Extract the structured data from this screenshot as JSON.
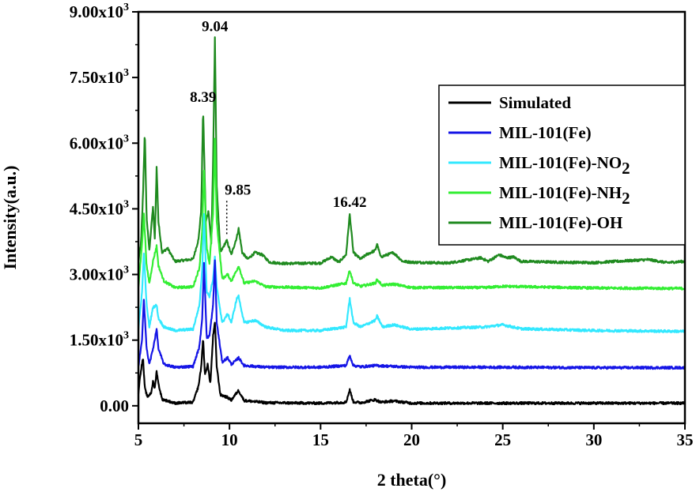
{
  "chart_data": {
    "type": "line",
    "title": "",
    "xlabel": "2 theta(°)",
    "ylabel": "Intensity(a.u.)",
    "xlim": [
      5,
      35
    ],
    "ylim": [
      -400,
      9000
    ],
    "x_ticks": [
      {
        "value": 5,
        "label": "5"
      },
      {
        "value": 10,
        "label": "10"
      },
      {
        "value": 15,
        "label": "15"
      },
      {
        "value": 20,
        "label": "20"
      },
      {
        "value": 25,
        "label": "25"
      },
      {
        "value": 30,
        "label": "30"
      },
      {
        "value": 35,
        "label": "35"
      }
    ],
    "y_ticks": [
      {
        "value": 0,
        "mant": "0.00",
        "exp": ""
      },
      {
        "value": 1500,
        "mant": "1.50x10",
        "exp": "3"
      },
      {
        "value": 3000,
        "mant": "3.00x10",
        "exp": "3"
      },
      {
        "value": 4500,
        "mant": "4.50x10",
        "exp": "3"
      },
      {
        "value": 6000,
        "mant": "6.00x10",
        "exp": "3"
      },
      {
        "value": 7500,
        "mant": "7.50x10",
        "exp": "3"
      },
      {
        "value": 9000,
        "mant": "9.00x10",
        "exp": "3"
      }
    ],
    "grid": false,
    "legend_position": "top-right",
    "series": [
      {
        "name": "MIL-101(Fe)-OH",
        "label": "MIL-101(Fe)-OH",
        "sub": "",
        "color": "#1f8a1f",
        "baseline": 3250,
        "points": [
          [
            5.0,
            3300
          ],
          [
            5.15,
            3750
          ],
          [
            5.25,
            4800
          ],
          [
            5.35,
            6250
          ],
          [
            5.45,
            4300
          ],
          [
            5.6,
            3550
          ],
          [
            5.8,
            4550
          ],
          [
            5.9,
            3800
          ],
          [
            6.0,
            5450
          ],
          [
            6.1,
            4200
          ],
          [
            6.3,
            3500
          ],
          [
            6.6,
            3600
          ],
          [
            7.0,
            3300
          ],
          [
            8.0,
            3350
          ],
          [
            8.3,
            3800
          ],
          [
            8.45,
            4500
          ],
          [
            8.55,
            6780
          ],
          [
            8.7,
            4200
          ],
          [
            8.85,
            4450
          ],
          [
            9.0,
            3700
          ],
          [
            9.1,
            5600
          ],
          [
            9.2,
            8400
          ],
          [
            9.3,
            5000
          ],
          [
            9.5,
            3500
          ],
          [
            9.85,
            3780
          ],
          [
            10.1,
            3450
          ],
          [
            10.4,
            3850
          ],
          [
            10.5,
            4050
          ],
          [
            10.7,
            3500
          ],
          [
            11.0,
            3350
          ],
          [
            11.4,
            3500
          ],
          [
            11.8,
            3450
          ],
          [
            12.2,
            3280
          ],
          [
            13.0,
            3250
          ],
          [
            15.0,
            3260
          ],
          [
            15.6,
            3400
          ],
          [
            16.0,
            3280
          ],
          [
            16.4,
            3450
          ],
          [
            16.6,
            4380
          ],
          [
            16.8,
            3500
          ],
          [
            17.2,
            3350
          ],
          [
            17.5,
            3450
          ],
          [
            18.0,
            3550
          ],
          [
            18.1,
            3700
          ],
          [
            18.3,
            3400
          ],
          [
            19.0,
            3500
          ],
          [
            19.5,
            3300
          ],
          [
            20.0,
            3280
          ],
          [
            22.0,
            3260
          ],
          [
            23.8,
            3380
          ],
          [
            24.2,
            3300
          ],
          [
            24.8,
            3450
          ],
          [
            25.2,
            3380
          ],
          [
            25.6,
            3400
          ],
          [
            26.0,
            3300
          ],
          [
            28.0,
            3280
          ],
          [
            30.0,
            3270
          ],
          [
            33.0,
            3340
          ],
          [
            34.0,
            3270
          ],
          [
            35.0,
            3300
          ]
        ]
      },
      {
        "name": "MIL-101(Fe)-NH2",
        "label": "MIL-101(Fe)-NH",
        "sub": "2",
        "color": "#33ee33",
        "baseline": 2680,
        "points": [
          [
            5.0,
            2700
          ],
          [
            5.2,
            3700
          ],
          [
            5.3,
            4400
          ],
          [
            5.45,
            3200
          ],
          [
            5.6,
            2800
          ],
          [
            5.8,
            3300
          ],
          [
            6.0,
            3650
          ],
          [
            6.1,
            3200
          ],
          [
            6.4,
            2850
          ],
          [
            7.0,
            2700
          ],
          [
            8.0,
            2720
          ],
          [
            8.35,
            3150
          ],
          [
            8.5,
            4000
          ],
          [
            8.6,
            5350
          ],
          [
            8.75,
            3600
          ],
          [
            8.9,
            3250
          ],
          [
            9.1,
            4400
          ],
          [
            9.2,
            6100
          ],
          [
            9.3,
            4200
          ],
          [
            9.6,
            2900
          ],
          [
            9.9,
            3000
          ],
          [
            10.1,
            2850
          ],
          [
            10.4,
            3100
          ],
          [
            10.5,
            3200
          ],
          [
            10.8,
            2800
          ],
          [
            11.4,
            2850
          ],
          [
            12.0,
            2720
          ],
          [
            15.0,
            2690
          ],
          [
            16.4,
            2800
          ],
          [
            16.6,
            3100
          ],
          [
            16.8,
            2800
          ],
          [
            17.2,
            2730
          ],
          [
            18.0,
            2800
          ],
          [
            18.1,
            2880
          ],
          [
            18.4,
            2750
          ],
          [
            19.0,
            2780
          ],
          [
            20.0,
            2700
          ],
          [
            24.0,
            2700
          ],
          [
            25.0,
            2730
          ],
          [
            30.0,
            2690
          ],
          [
            35.0,
            2680
          ]
        ]
      },
      {
        "name": "MIL-101(Fe)-NO2",
        "label": "MIL-101(Fe)-NO",
        "sub": "2",
        "color": "#33e8ff",
        "baseline": 1700,
        "points": [
          [
            5.0,
            1750
          ],
          [
            5.2,
            2600
          ],
          [
            5.3,
            3500
          ],
          [
            5.45,
            2300
          ],
          [
            5.6,
            1800
          ],
          [
            5.8,
            2250
          ],
          [
            6.0,
            2300
          ],
          [
            6.1,
            2000
          ],
          [
            6.4,
            1800
          ],
          [
            7.0,
            1720
          ],
          [
            8.0,
            1750
          ],
          [
            8.35,
            2300
          ],
          [
            8.5,
            3100
          ],
          [
            8.6,
            4400
          ],
          [
            8.75,
            2600
          ],
          [
            8.9,
            2500
          ],
          [
            9.1,
            2900
          ],
          [
            9.2,
            3400
          ],
          [
            9.3,
            2700
          ],
          [
            9.6,
            1900
          ],
          [
            9.9,
            2100
          ],
          [
            10.1,
            1900
          ],
          [
            10.4,
            2450
          ],
          [
            10.5,
            2500
          ],
          [
            10.8,
            1900
          ],
          [
            11.4,
            1950
          ],
          [
            12.0,
            1800
          ],
          [
            13.0,
            1720
          ],
          [
            15.0,
            1720
          ],
          [
            16.4,
            1800
          ],
          [
            16.6,
            2450
          ],
          [
            16.8,
            1900
          ],
          [
            17.2,
            1800
          ],
          [
            18.0,
            1950
          ],
          [
            18.1,
            2050
          ],
          [
            18.4,
            1800
          ],
          [
            19.0,
            1850
          ],
          [
            20.0,
            1750
          ],
          [
            24.0,
            1800
          ],
          [
            25.0,
            1850
          ],
          [
            26.0,
            1760
          ],
          [
            30.0,
            1720
          ],
          [
            35.0,
            1700
          ]
        ]
      },
      {
        "name": "MIL-101(Fe)",
        "label": "MIL-101(Fe)",
        "sub": "",
        "color": "#1515e6",
        "baseline": 870,
        "points": [
          [
            5.0,
            900
          ],
          [
            5.2,
            1500
          ],
          [
            5.3,
            2450
          ],
          [
            5.45,
            1300
          ],
          [
            5.6,
            950
          ],
          [
            5.8,
            1300
          ],
          [
            6.0,
            1750
          ],
          [
            6.1,
            1300
          ],
          [
            6.4,
            950
          ],
          [
            7.0,
            880
          ],
          [
            8.0,
            900
          ],
          [
            8.35,
            1350
          ],
          [
            8.5,
            2000
          ],
          [
            8.6,
            3250
          ],
          [
            8.75,
            1550
          ],
          [
            8.9,
            1600
          ],
          [
            9.1,
            2300
          ],
          [
            9.2,
            3350
          ],
          [
            9.3,
            1900
          ],
          [
            9.6,
            1000
          ],
          [
            9.9,
            1100
          ],
          [
            10.1,
            950
          ],
          [
            10.4,
            1050
          ],
          [
            10.5,
            1100
          ],
          [
            10.8,
            920
          ],
          [
            12.0,
            880
          ],
          [
            15.0,
            880
          ],
          [
            16.4,
            920
          ],
          [
            16.6,
            1150
          ],
          [
            16.8,
            920
          ],
          [
            17.2,
            890
          ],
          [
            18.0,
            920
          ],
          [
            19.0,
            900
          ],
          [
            20.0,
            880
          ],
          [
            25.0,
            880
          ],
          [
            30.0,
            870
          ],
          [
            35.0,
            870
          ]
        ]
      },
      {
        "name": "Simulated",
        "label": "Simulated",
        "sub": "",
        "color": "#000000",
        "baseline": 60,
        "points": [
          [
            5.0,
            300
          ],
          [
            5.1,
            700
          ],
          [
            5.25,
            1100
          ],
          [
            5.35,
            400
          ],
          [
            5.5,
            200
          ],
          [
            5.7,
            300
          ],
          [
            5.8,
            550
          ],
          [
            5.9,
            400
          ],
          [
            6.0,
            800
          ],
          [
            6.1,
            500
          ],
          [
            6.3,
            150
          ],
          [
            7.0,
            60
          ],
          [
            8.0,
            80
          ],
          [
            8.3,
            450
          ],
          [
            8.45,
            900
          ],
          [
            8.55,
            1550
          ],
          [
            8.65,
            700
          ],
          [
            8.8,
            950
          ],
          [
            8.95,
            500
          ],
          [
            9.1,
            1600
          ],
          [
            9.2,
            1900
          ],
          [
            9.3,
            900
          ],
          [
            9.5,
            250
          ],
          [
            9.85,
            200
          ],
          [
            10.1,
            130
          ],
          [
            10.4,
            300
          ],
          [
            10.5,
            350
          ],
          [
            10.8,
            120
          ],
          [
            12.0,
            70
          ],
          [
            15.0,
            60
          ],
          [
            16.4,
            80
          ],
          [
            16.6,
            360
          ],
          [
            16.8,
            90
          ],
          [
            17.2,
            70
          ],
          [
            18.0,
            140
          ],
          [
            18.3,
            80
          ],
          [
            19.0,
            110
          ],
          [
            20.0,
            60
          ],
          [
            25.0,
            60
          ],
          [
            30.0,
            60
          ],
          [
            35.0,
            60
          ]
        ]
      }
    ],
    "annotations": [
      {
        "text": "9.04",
        "x": 9.2,
        "y": 8400
      },
      {
        "text": "8.39",
        "x": 8.55,
        "y": 6780
      },
      {
        "text": "9.85",
        "x": 9.85,
        "y": 3780,
        "dotted": true
      },
      {
        "text": "16.42",
        "x": 16.6,
        "y": 4380
      }
    ],
    "legend_order": [
      "Simulated",
      "MIL-101(Fe)",
      "MIL-101(Fe)-NO2",
      "MIL-101(Fe)-NH2",
      "MIL-101(Fe)-OH"
    ]
  }
}
